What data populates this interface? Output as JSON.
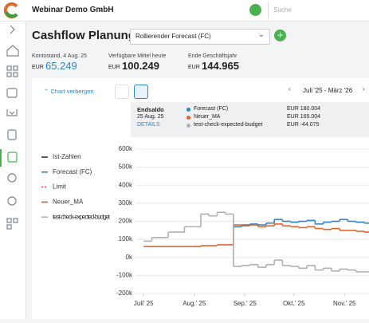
{
  "header": {
    "company": "Webinar Demo GmbH",
    "search": "Suche"
  },
  "page": {
    "title": "Cashflow Planung",
    "scenario": "Rollierender Forecast (FC)"
  },
  "stats": [
    {
      "label": "Kontostand, 4 Aug. 25",
      "currency": "EUR",
      "value": "65.249"
    },
    {
      "label": "Verfügbare Mittel heute",
      "currency": "EUR",
      "value": "100.249"
    },
    {
      "label": "Ende Geschäftsjahr",
      "currency": "EUR",
      "value": "144.965"
    }
  ],
  "controls": {
    "toggle": "Chart verbergen",
    "range": "Juli '25 - März '26"
  },
  "tooltip": {
    "title": "Endsaldo",
    "date": "25 Aug. 25",
    "link": "DETAILS",
    "rows": [
      {
        "name": "Forecast (FC)",
        "value": "EUR 180.004"
      },
      {
        "name": "Neuer_MA",
        "value": "EUR 165.004"
      },
      {
        "name": "test-check-expected-budget",
        "value": "EUR -44.075"
      }
    ]
  },
  "chart_data": {
    "type": "step-line",
    "x": [
      0,
      5,
      10,
      15,
      20,
      25,
      30,
      35,
      40,
      45,
      50,
      55,
      60,
      65,
      70,
      75,
      80,
      85,
      90,
      95,
      100,
      105,
      110,
      115,
      120,
      125,
      130,
      135
    ],
    "xlim": [
      -5,
      138
    ],
    "xticks": [
      {
        "value": 0,
        "label": "Juli' 25"
      },
      {
        "value": 31,
        "label": "Aug.' 25"
      },
      {
        "value": 62,
        "label": "Sep.' 25"
      },
      {
        "value": 92,
        "label": "Okt.' 25"
      },
      {
        "value": 123,
        "label": "Nov.' 25"
      }
    ],
    "ylim": [
      -200000,
      600000
    ],
    "yticks": [
      {
        "value": -200000,
        "label": "-200k"
      },
      {
        "value": -100000,
        "label": "-100k"
      },
      {
        "value": 0,
        "label": "0k"
      },
      {
        "value": 100000,
        "label": "100k"
      },
      {
        "value": 200000,
        "label": "200k"
      },
      {
        "value": 300000,
        "label": "300k"
      },
      {
        "value": 400000,
        "label": "400k"
      },
      {
        "value": 500000,
        "label": "500k"
      },
      {
        "value": 600000,
        "label": "600k"
      }
    ],
    "grid": true,
    "series": [
      {
        "name": "Ist-Zahlen",
        "color": "#333333",
        "dash": false,
        "values": [
          null,
          null,
          null,
          null,
          null,
          null,
          null,
          null,
          null,
          null,
          null,
          null,
          null,
          null,
          null,
          null,
          null,
          null,
          null,
          null,
          null,
          null,
          null,
          null,
          null,
          null,
          null,
          null
        ]
      },
      {
        "name": "Forecast (FC)",
        "color": "#2e86c1",
        "dash": false,
        "values": [
          null,
          null,
          null,
          null,
          null,
          null,
          null,
          null,
          null,
          null,
          null,
          170000,
          180000,
          185000,
          180000,
          190000,
          210000,
          200000,
          195000,
          200000,
          205000,
          185000,
          195000,
          200000,
          210000,
          200000,
          195000,
          190000
        ]
      },
      {
        "name": "Limit",
        "color": "#e74c3c",
        "dash": true,
        "values": [
          null,
          null,
          null,
          null,
          null,
          null,
          null,
          null,
          null,
          null,
          null,
          null,
          null,
          null,
          null,
          null,
          null,
          null,
          null,
          null,
          null,
          null,
          null,
          null,
          null,
          null,
          null,
          null
        ]
      },
      {
        "name": "Neuer_MA",
        "color": "#e0642c",
        "dash": false,
        "values": [
          60000,
          60000,
          60000,
          60000,
          60000,
          60000,
          60000,
          65000,
          65000,
          70000,
          70000,
          180000,
          175000,
          180000,
          170000,
          175000,
          185000,
          175000,
          170000,
          165000,
          170000,
          160000,
          155000,
          160000,
          150000,
          150000,
          145000,
          140000
        ]
      },
      {
        "name": "test-check-expected-budget",
        "color": "#b0b0b0",
        "dash": false,
        "values": [
          90000,
          110000,
          110000,
          140000,
          140000,
          170000,
          170000,
          240000,
          230000,
          250000,
          240000,
          -50000,
          -45000,
          -40000,
          -55000,
          -40000,
          -15000,
          -45000,
          -50000,
          -60000,
          -45000,
          -70000,
          -60000,
          -75000,
          -65000,
          -70000,
          -80000,
          -80000
        ]
      }
    ]
  }
}
